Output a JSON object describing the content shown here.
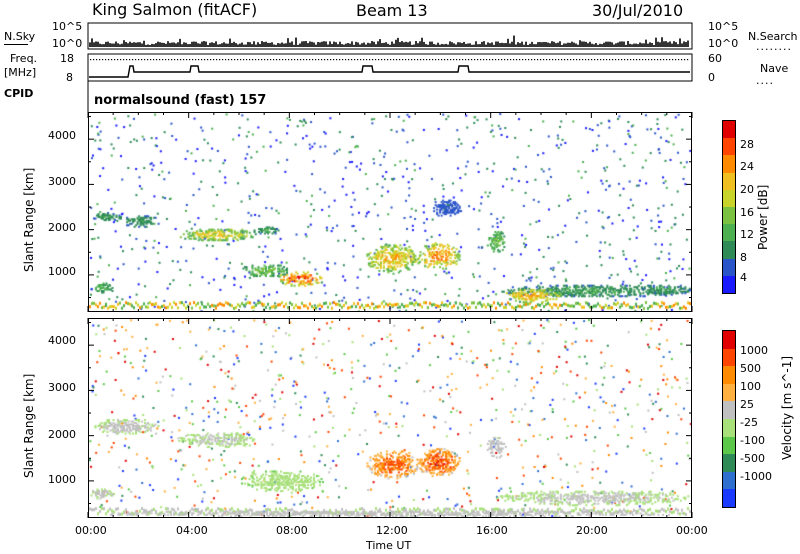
{
  "header": {
    "station": "King Salmon (fitACF)",
    "beam": "Beam 13",
    "date": "30/Jul/2010"
  },
  "strip_labels": {
    "nsky": "N.Sky",
    "nsearch": "N.Search",
    "nsearch_dots": "........",
    "freq_top": "Freq.",
    "freq_unit": "[MHz]",
    "cpid": "CPID",
    "nave": "Nave",
    "nave_dots": "....",
    "nsky_ticks": [
      "10^5",
      "10^0"
    ],
    "nsearch_ticks": [
      "10^5",
      "10^0"
    ],
    "freq_ticks": [
      "18",
      "8"
    ],
    "nave_ticks": [
      "60",
      "0"
    ],
    "cpid_text": "normalsound (fast) 157"
  },
  "colors": {
    "power": [
      "#1a1aff",
      "#2a55c8",
      "#2e8b57",
      "#4caf50",
      "#7cc242",
      "#c8d42a",
      "#f0c020",
      "#ff8c00",
      "#ff4500",
      "#e00000"
    ],
    "velocity": [
      "#1a3aff",
      "#2e6fd0",
      "#2e8b57",
      "#5cc84a",
      "#a8e07a",
      "#c0c0c0",
      "#ffb040",
      "#ff8c00",
      "#ff4500",
      "#e00000"
    ],
    "background": "#ffffff"
  },
  "chart_data": [
    {
      "type": "heatmap",
      "panel": "power",
      "ylabel": "Slant Range [km]",
      "yticks": [
        "1000",
        "2000",
        "3000",
        "4000"
      ],
      "ylim": [
        180,
        4600
      ],
      "xlim": [
        0,
        24
      ],
      "colorbar_label": "Power [dB]",
      "colorbar_ticks": [
        "4",
        "8",
        "12",
        "16",
        "20",
        "24",
        "28"
      ],
      "colorbar_range": [
        0,
        30
      ],
      "regions": [
        {
          "t0": 0.1,
          "t1": 1.3,
          "r0": 2200,
          "r1": 2400,
          "v0": 4,
          "v1": 10
        },
        {
          "t0": 1.3,
          "t1": 2.8,
          "r0": 2050,
          "r1": 2350,
          "v0": 4,
          "v1": 9
        },
        {
          "t0": 0.0,
          "t1": 1.0,
          "r0": 600,
          "r1": 850,
          "v0": 5,
          "v1": 12
        },
        {
          "t0": 3.5,
          "t1": 6.7,
          "r0": 1750,
          "r1": 2050,
          "v0": 6,
          "v1": 20
        },
        {
          "t0": 6.5,
          "t1": 7.6,
          "r0": 1900,
          "r1": 2100,
          "v0": 4,
          "v1": 10
        },
        {
          "t0": 6.0,
          "t1": 8.0,
          "r0": 950,
          "r1": 1250,
          "v0": 6,
          "v1": 14
        },
        {
          "t0": 7.5,
          "t1": 9.3,
          "r0": 750,
          "r1": 1100,
          "v0": 10,
          "v1": 28
        },
        {
          "t0": 11.0,
          "t1": 13.2,
          "r0": 1050,
          "r1": 1700,
          "v0": 8,
          "v1": 22
        },
        {
          "t0": 13.0,
          "t1": 14.8,
          "r0": 1100,
          "r1": 1750,
          "v0": 8,
          "v1": 24
        },
        {
          "t0": 15.8,
          "t1": 16.6,
          "r0": 1500,
          "r1": 2000,
          "v0": 6,
          "v1": 14
        },
        {
          "t0": 13.6,
          "t1": 14.9,
          "r0": 2300,
          "r1": 2700,
          "v0": 3,
          "v1": 6
        },
        {
          "t0": 16.2,
          "t1": 24.0,
          "r0": 500,
          "r1": 800,
          "v0": 4,
          "v1": 10
        },
        {
          "t0": 16.5,
          "t1": 18.8,
          "r0": 380,
          "r1": 700,
          "v0": 10,
          "v1": 22
        },
        {
          "t0": 22.0,
          "t1": 24.0,
          "r0": 550,
          "r1": 800,
          "v0": 4,
          "v1": 10
        }
      ]
    },
    {
      "type": "heatmap",
      "panel": "velocity",
      "ylabel": "Slant Range [km]",
      "yticks": [
        "1000",
        "2000",
        "3000",
        "4000"
      ],
      "ylim": [
        180,
        4600
      ],
      "xlim": [
        0,
        24
      ],
      "xlabel": "Time UT",
      "xticks": [
        "00:00",
        "04:00",
        "08:00",
        "12:00",
        "16:00",
        "20:00",
        "00:00"
      ],
      "colorbar_label": "Velocity [m s^-1]",
      "colorbar_ticks": [
        "1000",
        "500",
        "100",
        "25",
        "-25",
        "-100",
        "-500",
        "-1000"
      ],
      "colorbar_range": [
        -1200,
        1200
      ],
      "regions": [
        {
          "t0": 0.1,
          "t1": 2.8,
          "r0": 2050,
          "r1": 2400,
          "v0": -30,
          "v1": 30
        },
        {
          "t0": 0.0,
          "t1": 1.0,
          "r0": 600,
          "r1": 850,
          "v0": -20,
          "v1": 20
        },
        {
          "t0": 3.5,
          "t1": 6.7,
          "r0": 1750,
          "r1": 2100,
          "v0": -40,
          "v1": 20
        },
        {
          "t0": 6.0,
          "t1": 9.3,
          "r0": 750,
          "r1": 1250,
          "v0": -300,
          "v1": -60
        },
        {
          "t0": 11.0,
          "t1": 13.2,
          "r0": 1050,
          "r1": 1700,
          "v0": 30,
          "v1": 900
        },
        {
          "t0": 13.0,
          "t1": 14.8,
          "r0": 1100,
          "r1": 1750,
          "v0": 50,
          "v1": 1000
        },
        {
          "t0": 15.8,
          "t1": 16.6,
          "r0": 1500,
          "r1": 2000,
          "v0": 30,
          "v1": 150
        },
        {
          "t0": 16.2,
          "t1": 24.0,
          "r0": 450,
          "r1": 800,
          "v0": -30,
          "v1": 20
        },
        {
          "t0": 0.0,
          "t1": 24.0,
          "r0": 200,
          "r1": 350,
          "v0": 20,
          "v1": 200
        }
      ]
    }
  ]
}
